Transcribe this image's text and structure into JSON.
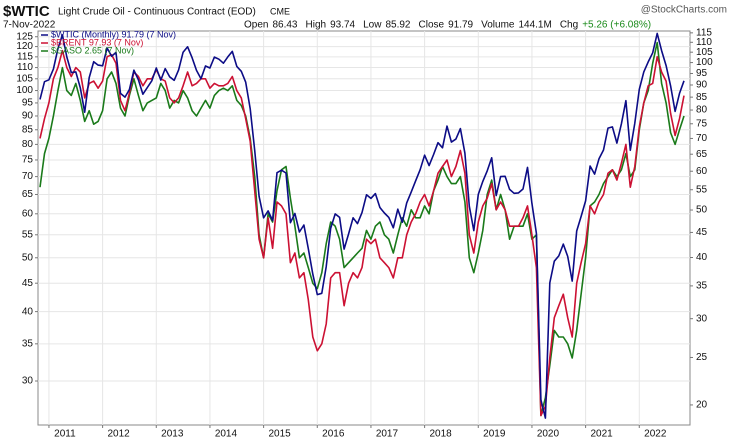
{
  "chart_data": {
    "type": "line",
    "title": "$WTIC",
    "subtitle": "Light Crude Oil - Continuous Contract (EOD)",
    "exchange": "CME",
    "date": "7-Nov-2022",
    "credit": "@StockCharts.com",
    "quote": [
      {
        "label": "Open",
        "value": "86.43"
      },
      {
        "label": "High",
        "value": "93.74"
      },
      {
        "label": "Low",
        "value": "85.92"
      },
      {
        "label": "Close",
        "value": "91.79"
      },
      {
        "label": "Volume",
        "value": "144.1M"
      },
      {
        "label": "Chg",
        "value": "+5.26 (+6.08%)"
      }
    ],
    "log_scale": true,
    "grid": true,
    "legend": "top-left",
    "categories": [
      null,
      null,
      "2011",
      null,
      null,
      null,
      null,
      null,
      null,
      null,
      null,
      null,
      null,
      null,
      "2012",
      null,
      null,
      null,
      null,
      null,
      null,
      null,
      null,
      null,
      null,
      null,
      "2013",
      null,
      null,
      null,
      null,
      null,
      null,
      null,
      null,
      null,
      null,
      null,
      "2014",
      null,
      null,
      null,
      null,
      null,
      null,
      null,
      null,
      null,
      null,
      null,
      "2015",
      null,
      null,
      null,
      null,
      null,
      null,
      null,
      null,
      null,
      null,
      null,
      "2016",
      null,
      null,
      null,
      null,
      null,
      null,
      null,
      null,
      null,
      null,
      null,
      "2017",
      null,
      null,
      null,
      null,
      null,
      null,
      null,
      null,
      null,
      null,
      null,
      "2018",
      null,
      null,
      null,
      null,
      null,
      null,
      null,
      null,
      null,
      null,
      null,
      "2019",
      null,
      null,
      null,
      null,
      null,
      null,
      null,
      null,
      null,
      null,
      null,
      "2020",
      null,
      null,
      null,
      null,
      null,
      null,
      null,
      null,
      null,
      null,
      null,
      "2021",
      null,
      null,
      null,
      null,
      null,
      null,
      null,
      null,
      null,
      null,
      null,
      "2022",
      null,
      null,
      null,
      null,
      null,
      null,
      null,
      null,
      null,
      null
    ],
    "ylim": [
      25,
      128
    ],
    "yticks": [
      125,
      120,
      115,
      110,
      105,
      100,
      95,
      90,
      85,
      80,
      75,
      70,
      65,
      60,
      55,
      50,
      45,
      40,
      35,
      30
    ],
    "y2lim": [
      18.2,
      116
    ],
    "y2ticks": [
      115,
      110,
      105,
      100,
      95,
      90,
      85,
      80,
      75,
      70,
      65,
      60,
      55,
      50,
      45,
      40,
      35,
      30,
      25,
      20
    ],
    "series": [
      {
        "name": "$WTIC (Monthly) 91.79 (7 Nov)",
        "color": "#0c0c86",
        "axis": "y2",
        "values": [
          84.1,
          91.4,
          92.2,
          97.0,
          106.7,
          113.9,
          102.7,
          95.4,
          95.7,
          88.8,
          79.2,
          93.2,
          100.4,
          98.8,
          98.5,
          107.1,
          103.0,
          104.9,
          86.5,
          85.0,
          88.1,
          96.5,
          92.2,
          86.2,
          88.9,
          91.8,
          97.5,
          92.1,
          97.2,
          93.5,
          92.0,
          96.6,
          105.0,
          107.7,
          102.3,
          96.4,
          92.7,
          98.4,
          97.5,
          102.6,
          101.6,
          99.7,
          102.7,
          105.4,
          98.2,
          96.0,
          91.2,
          80.5,
          66.2,
          53.3,
          48.2,
          49.8,
          47.6,
          59.6,
          60.3,
          59.5,
          47.1,
          49.2,
          45.1,
          46.6,
          41.7,
          37.0,
          33.6,
          33.8,
          38.3,
          45.9,
          49.1,
          48.3,
          41.6,
          44.7,
          48.2,
          46.9,
          49.4,
          53.7,
          52.8,
          54.0,
          50.6,
          49.3,
          48.3,
          46.0,
          50.2,
          47.2,
          51.7,
          54.4,
          57.4,
          60.4,
          64.7,
          61.6,
          64.9,
          68.6,
          67.0,
          74.2,
          68.8,
          69.8,
          73.3,
          65.3,
          50.9,
          45.4,
          53.8,
          57.2,
          60.1,
          63.9,
          53.5,
          58.5,
          58.6,
          55.1,
          54.1,
          54.2,
          55.2,
          61.1,
          51.6,
          44.8,
          20.5,
          18.8,
          35.5,
          39.3,
          40.3,
          42.6,
          40.2,
          35.8,
          45.3,
          48.5,
          52.2,
          61.5,
          59.2,
          63.6,
          66.3,
          73.5,
          73.9,
          68.5,
          75.0,
          83.6,
          66.2,
          75.2,
          88.2,
          95.7,
          100.3,
          104.7,
          114.7,
          105.8,
          98.6,
          89.6,
          79.5,
          86.5,
          91.8
        ]
      },
      {
        "name": "$BRENT 97.93 (7 Nov)",
        "color": "#cc1133",
        "axis": "y",
        "values": [
          82,
          89,
          95,
          105,
          110,
          118,
          110,
          106,
          110,
          108,
          97,
          103,
          104,
          101,
          104,
          115,
          116,
          112,
          96,
          92,
          99,
          108,
          106,
          102,
          105,
          105,
          109,
          105,
          104,
          97,
          95,
          97,
          102,
          108,
          102,
          103,
          105,
          105,
          101,
          103,
          102,
          102,
          103,
          106,
          100,
          97,
          89,
          81,
          66,
          54,
          50,
          59,
          52,
          63,
          62,
          60,
          49,
          51,
          46,
          47,
          42,
          36,
          34,
          35,
          38,
          46,
          47,
          47,
          41,
          45,
          47,
          46,
          48,
          54,
          53,
          54,
          50,
          49,
          48,
          46,
          50,
          50,
          55,
          58,
          60,
          63,
          65,
          62,
          66,
          71,
          73,
          75,
          70,
          73,
          78,
          71,
          55,
          51,
          58,
          62,
          64,
          68,
          61,
          63,
          61,
          57,
          57,
          57,
          59,
          62,
          55,
          48,
          26,
          27,
          33,
          39,
          41,
          43,
          39,
          36,
          45,
          49,
          53,
          62,
          60,
          63,
          65,
          71,
          72,
          69,
          74,
          80,
          67,
          73,
          86,
          95,
          102,
          103,
          115,
          108,
          104,
          91,
          83,
          89,
          97.93
        ]
      },
      {
        "name": "$GASO 2.65 (7 Nov)",
        "color": "#1a7a1a",
        "axis": "y",
        "values": [
          67,
          77,
          82,
          90,
          100,
          110,
          100,
          98,
          103,
          96,
          88,
          92,
          87,
          88,
          92,
          105,
          108,
          103,
          93,
          90,
          98,
          105,
          98,
          92,
          95,
          96,
          97,
          103,
          100,
          93,
          96,
          95,
          100,
          97,
          92,
          90,
          93,
          96,
          93,
          98,
          100,
          101,
          100,
          102,
          96,
          94,
          90,
          82,
          70,
          55,
          50,
          60,
          58,
          66,
          72,
          73,
          64,
          57,
          50,
          51,
          48,
          45,
          44,
          47,
          53,
          58,
          57,
          54,
          48,
          49,
          50,
          51,
          52,
          56,
          54,
          57,
          58,
          55,
          54,
          51,
          55,
          59,
          57,
          61,
          59,
          59,
          62,
          60,
          66,
          69,
          73,
          70,
          68,
          68,
          70,
          63,
          50,
          47,
          51,
          56,
          65,
          69,
          61,
          65,
          61,
          54,
          57,
          57,
          57,
          60,
          54,
          55,
          26,
          28,
          32,
          37,
          36,
          36,
          35,
          33,
          37,
          43,
          50,
          62,
          63,
          65,
          68,
          70,
          72,
          70,
          72,
          77,
          70,
          72,
          85,
          95,
          100,
          112,
          122,
          103,
          95,
          84,
          80,
          85,
          90
        ]
      }
    ]
  }
}
